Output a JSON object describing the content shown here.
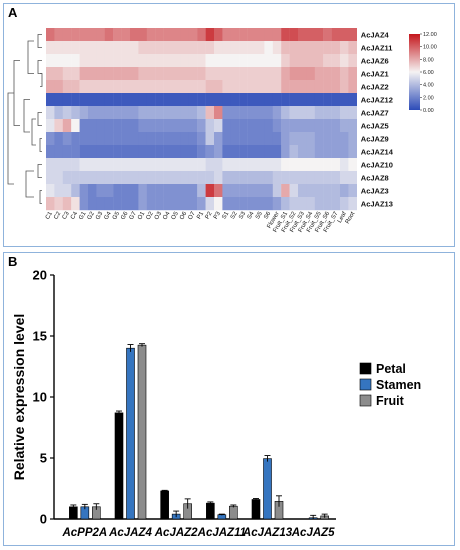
{
  "chart_data": [
    {
      "panel": "A",
      "type": "heatmap",
      "columns": [
        "C1",
        "C2",
        "C3",
        "C4",
        "G1",
        "G2",
        "G3",
        "G4",
        "G5",
        "G6",
        "G7",
        "O1",
        "O2",
        "O3",
        "O4",
        "O5",
        "O6",
        "O7",
        "P1",
        "P2",
        "P3",
        "S1",
        "S2",
        "S3",
        "S4",
        "S5",
        "S6",
        "Flower",
        "Fruit_S1",
        "Fruit_S2",
        "Fruit_S3",
        "Fruit_S4",
        "Fruit_S5",
        "Fruit_S6",
        "Fruit_S7",
        "Leaf",
        "Root"
      ],
      "rows": [
        "AcJAZ4",
        "AcJAZ11",
        "AcJAZ6",
        "AcJAZ1",
        "AcJAZ2",
        "AcJAZ12",
        "AcJAZ7",
        "AcJAZ5",
        "AcJAZ9",
        "AcJAZ14",
        "AcJAZ10",
        "AcJAZ8",
        "AcJAZ3",
        "AcJAZ13"
      ],
      "values": [
        [
          9.5,
          9,
          9,
          9,
          9,
          9,
          9,
          9.5,
          9,
          9,
          9.5,
          9.5,
          9,
          9,
          9,
          9,
          9,
          9,
          9.5,
          11,
          10,
          9,
          9,
          9,
          9,
          9,
          9,
          9,
          10.5,
          10.5,
          10,
          10,
          10,
          9.5,
          10,
          10,
          10
        ],
        [
          6.5,
          6.5,
          6.5,
          6.5,
          6.5,
          6.5,
          6.5,
          6.5,
          6.5,
          6.5,
          6.5,
          7,
          7,
          7,
          7,
          7,
          7,
          7,
          7,
          7,
          6.5,
          6.5,
          6.5,
          6.5,
          6.5,
          6.5,
          6,
          6.5,
          7.5,
          7.5,
          7.5,
          7.5,
          7.5,
          7.5,
          7.5,
          7,
          7.5
        ],
        [
          6,
          6,
          6,
          6,
          6.5,
          6.5,
          6.5,
          6.5,
          6.5,
          6.5,
          6.5,
          6.5,
          6.5,
          6.5,
          6.5,
          6.5,
          6.5,
          6.5,
          6.5,
          6,
          6,
          6,
          6,
          6,
          6,
          6,
          6,
          6,
          7,
          7.5,
          7.5,
          7.5,
          7.5,
          7,
          7,
          6.5,
          7
        ],
        [
          7.5,
          7.5,
          7,
          7,
          8,
          8,
          8,
          8,
          8,
          8,
          8,
          7.5,
          7.5,
          7.5,
          7.5,
          7.5,
          7.5,
          7.5,
          7.5,
          7,
          7,
          7,
          7,
          7,
          7,
          7,
          7,
          7,
          8,
          8.5,
          8.5,
          8.5,
          8,
          8,
          8,
          7.5,
          8
        ],
        [
          8,
          8,
          7.5,
          7.5,
          7,
          7,
          7,
          7,
          7,
          7,
          7,
          7,
          7,
          7,
          7,
          7,
          7,
          7,
          7,
          7.5,
          7.5,
          7,
          7,
          7,
          7,
          7,
          7,
          7,
          8,
          8,
          8,
          8,
          8,
          8,
          8,
          7.5,
          8
        ],
        [
          0.5,
          0.5,
          0.5,
          0.5,
          0.5,
          0.5,
          0.5,
          0.5,
          0.5,
          0.5,
          0.5,
          0.5,
          0.5,
          0.5,
          0.5,
          0.5,
          0.5,
          0.5,
          0.5,
          0.5,
          0.5,
          0.5,
          0.5,
          0.5,
          0.5,
          0.5,
          0.5,
          0.5,
          0.5,
          0.5,
          0.5,
          0.5,
          0.5,
          0.5,
          0.5,
          0.5,
          0.5
        ],
        [
          5,
          4,
          4.5,
          4,
          3.5,
          3,
          3,
          3,
          3,
          3,
          3,
          3.5,
          3.5,
          3.5,
          3.5,
          3.5,
          3.5,
          3.5,
          4,
          7.5,
          9,
          2.5,
          2.5,
          2.5,
          2.5,
          2.5,
          2.5,
          3,
          4,
          4.5,
          4.5,
          4.5,
          4,
          4,
          4,
          4.5,
          4.5
        ],
        [
          5.5,
          7,
          8,
          6,
          2,
          2,
          2,
          2,
          2,
          2,
          2,
          2.5,
          2.5,
          2.5,
          2.5,
          2.5,
          2.5,
          2.5,
          3,
          4.5,
          5,
          2,
          2,
          2,
          2,
          2,
          2,
          2.5,
          3,
          3,
          3,
          3,
          3,
          3,
          3,
          3.5,
          3.5
        ],
        [
          2.5,
          2,
          2.5,
          2,
          2,
          2,
          2,
          2,
          2,
          2,
          2,
          2,
          2,
          2,
          2,
          2,
          2,
          2,
          2.5,
          4.5,
          3,
          2,
          2,
          2,
          2,
          2,
          2,
          2,
          3,
          3.5,
          3.5,
          3.5,
          3,
          3,
          3,
          3,
          3.5
        ],
        [
          2,
          2,
          2,
          2,
          1.5,
          1.5,
          1.5,
          1.5,
          1.5,
          1.5,
          1.5,
          1.5,
          1.5,
          1.5,
          1.5,
          1.5,
          1.5,
          1.5,
          2,
          2.5,
          3,
          1.5,
          1.5,
          1.5,
          1.5,
          1.5,
          1.5,
          1.5,
          3,
          4,
          3.5,
          3.5,
          3,
          3,
          3,
          3,
          3.5
        ],
        [
          5,
          5,
          5,
          5,
          5.5,
          5.5,
          5.5,
          5.5,
          5.5,
          5.5,
          5.5,
          5.5,
          5.5,
          5.5,
          5.5,
          5.5,
          5.5,
          5.5,
          5.5,
          5,
          5,
          5.5,
          5.5,
          5.5,
          5.5,
          5.5,
          5.5,
          5.5,
          6,
          6,
          6,
          6,
          6,
          6,
          6,
          5.5,
          6
        ],
        [
          5,
          5,
          4.5,
          4.5,
          4.5,
          4.5,
          4.5,
          4.5,
          4.5,
          4.5,
          4.5,
          4.5,
          4.5,
          4.5,
          4.5,
          4.5,
          4.5,
          4.5,
          4.5,
          4.5,
          5,
          4,
          4,
          4,
          4,
          4,
          4,
          4.5,
          4.5,
          4.5,
          4.5,
          4.5,
          4.5,
          4.5,
          4.5,
          5,
          5
        ],
        [
          5.5,
          5,
          5,
          4,
          2.5,
          2,
          2.5,
          2.5,
          2,
          2,
          2,
          3,
          2.5,
          2.5,
          2.5,
          2.5,
          2.5,
          2.5,
          4,
          11,
          9.5,
          3,
          3,
          3,
          3,
          3,
          3,
          4.5,
          8,
          5,
          4,
          4,
          4,
          4,
          4,
          3.5,
          4
        ],
        [
          7.5,
          7,
          7.5,
          6.5,
          2.5,
          2,
          2,
          2,
          2,
          2,
          2,
          3,
          2.5,
          2.5,
          2.5,
          2.5,
          2.5,
          2.5,
          3,
          5,
          6,
          2.5,
          2.5,
          2.5,
          2.5,
          2.5,
          2.5,
          3,
          4,
          4.5,
          4.5,
          4.5,
          4,
          4,
          4,
          4.5,
          5
        ]
      ],
      "color_scale": {
        "min": 0,
        "max": 12,
        "low": "#2c4bb8",
        "mid": "#f5f3f3",
        "high": "#c4161c"
      },
      "legend_ticks": [
        "0.00",
        "2.00",
        "4.00",
        "6.00",
        "8.00",
        "10.00",
        "12.00"
      ],
      "legend_placement": "right"
    },
    {
      "panel": "B",
      "type": "bar",
      "categories": [
        "AcPP2A",
        "AcJAZ4",
        "AcJAZ2",
        "AcJAZ11",
        "AcJAZ13",
        "AcJAZ5"
      ],
      "series": [
        {
          "name": "Petal",
          "color": "#000000",
          "values": [
            1.0,
            8.7,
            2.3,
            1.3,
            1.6,
            0.0
          ],
          "errors": [
            0.15,
            0.15,
            0.05,
            0.1,
            0.08,
            0.0
          ]
        },
        {
          "name": "Stamen",
          "color": "#3575c0",
          "values": [
            1.0,
            14.0,
            0.4,
            0.35,
            4.95,
            0.1
          ],
          "errors": [
            0.2,
            0.3,
            0.25,
            0.05,
            0.25,
            0.2
          ]
        },
        {
          "name": "Fruit",
          "color": "#8c8c8c",
          "values": [
            1.0,
            14.25,
            1.25,
            1.05,
            1.45,
            0.25
          ],
          "errors": [
            0.25,
            0.12,
            0.4,
            0.1,
            0.45,
            0.15
          ]
        }
      ],
      "ylabel": "Relative expression level",
      "ylim": [
        0,
        20
      ],
      "yticks": [
        0,
        5,
        10,
        15,
        20
      ],
      "legend_placement": "right"
    }
  ],
  "labels": {
    "panel_a": "A",
    "panel_b": "B"
  }
}
